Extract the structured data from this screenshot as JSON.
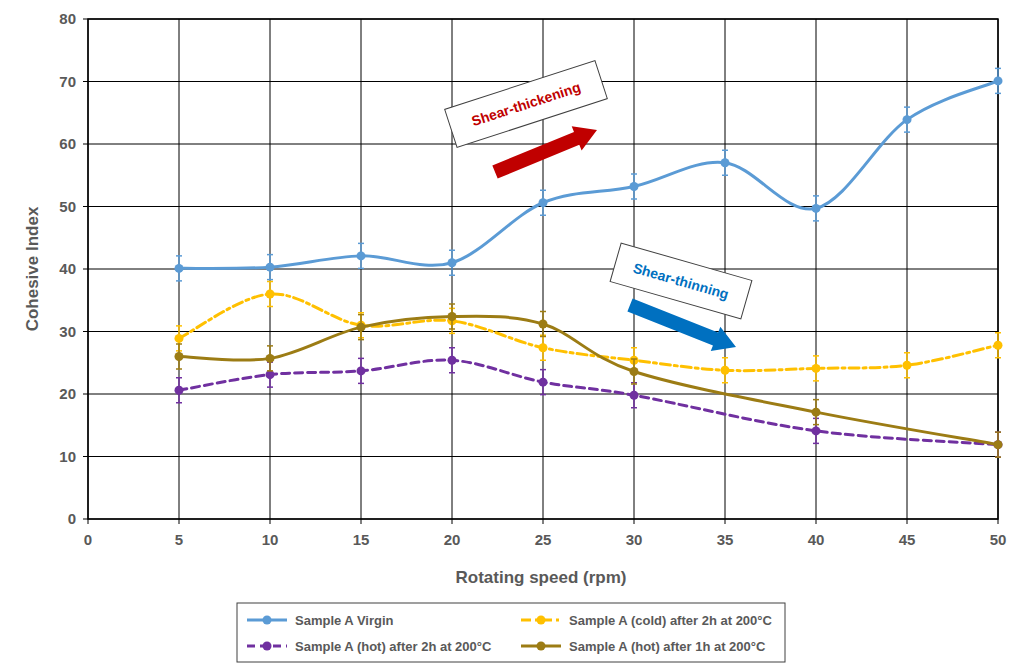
{
  "chart_data": {
    "type": "line",
    "x_label": "Rotating speed (rpm)",
    "y_label": "Cohesive Index",
    "xlim": [
      0,
      50
    ],
    "ylim": [
      0,
      80
    ],
    "xticks": [
      0,
      5,
      10,
      15,
      20,
      25,
      30,
      35,
      40,
      45,
      50
    ],
    "yticks": [
      0,
      10,
      20,
      30,
      40,
      50,
      60,
      70,
      80
    ],
    "grid": true,
    "legend": "bottom",
    "series": [
      {
        "name": "Sample A Virgin",
        "color": "#5b9bd5",
        "marker": "circle",
        "line_style": "solid",
        "x": [
          5,
          10,
          15,
          20,
          25,
          30,
          35,
          40,
          45,
          50
        ],
        "values": [
          40.1,
          40.3,
          42.1,
          41.0,
          50.6,
          53.2,
          57.0,
          49.7,
          63.9,
          70.1
        ],
        "errors": [
          2,
          2,
          2,
          2,
          2,
          2,
          2,
          2,
          2,
          2
        ]
      },
      {
        "name": "Sample A (cold) after 2h at 200°C",
        "color": "#ffc000",
        "marker": "circle",
        "line_style": "dash-dot",
        "x": [
          5,
          10,
          15,
          20,
          25,
          30,
          35,
          40,
          45,
          50
        ],
        "values": [
          28.9,
          36.0,
          31.0,
          31.7,
          27.4,
          25.4,
          23.8,
          24.1,
          24.6,
          27.8
        ],
        "errors": [
          2,
          2,
          2,
          2,
          2,
          2,
          2,
          2,
          2,
          2
        ]
      },
      {
        "name": "Sample A (hot) after 2h at 200°C",
        "color": "#7030a0",
        "marker": "circle",
        "line_style": "dashed",
        "x": [
          5,
          10,
          15,
          20,
          25,
          30,
          40,
          50
        ],
        "values": [
          20.6,
          23.1,
          23.7,
          25.4,
          21.9,
          19.8,
          14.1,
          11.9
        ],
        "errors": [
          2,
          2,
          2,
          2,
          2,
          2,
          2,
          2
        ]
      },
      {
        "name": "Sample A (hot) after 1h at 200°C",
        "color": "#9c7c14",
        "marker": "circle",
        "line_style": "solid",
        "x": [
          5,
          10,
          15,
          20,
          25,
          30,
          40,
          50
        ],
        "values": [
          26.0,
          25.7,
          30.7,
          32.4,
          31.2,
          23.6,
          17.1,
          11.9
        ],
        "errors": [
          2,
          2,
          2,
          2,
          2,
          2,
          2,
          2
        ]
      }
    ],
    "annotations": [
      {
        "text": "Shear-thickening",
        "color": "#c00000"
      },
      {
        "text": "Shear-thinning",
        "color": "#0070c0"
      }
    ]
  }
}
